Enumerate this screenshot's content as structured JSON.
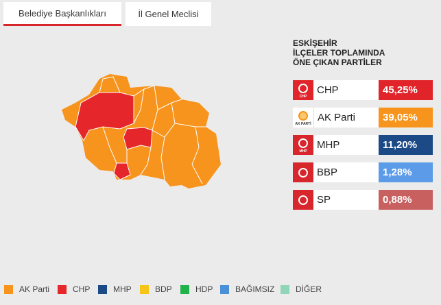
{
  "tabs": [
    "Belediye Başkanlıkları",
    "İl Genel Meclisi"
  ],
  "summary": {
    "title_lines": [
      "ESKİŞEHİR",
      "İLÇELER TOPLAMINDA",
      "ÖNE ÇIKAN PARTİLER"
    ],
    "parties": [
      {
        "name": "CHP",
        "share": "45,25%",
        "logo_label": "CHP"
      },
      {
        "name": "AK Parti",
        "share": "39,05%",
        "logo_label": "AK PARTİ"
      },
      {
        "name": "MHP",
        "share": "11,20%",
        "logo_label": "MHP"
      },
      {
        "name": "BBP",
        "share": "1,28%"
      },
      {
        "name": "SP",
        "share": "0,88%"
      }
    ]
  },
  "legend": [
    "AK Parti",
    "CHP",
    "MHP",
    "BDP",
    "HDP",
    "BAĞIMSIZ",
    "DİĞER"
  ]
}
